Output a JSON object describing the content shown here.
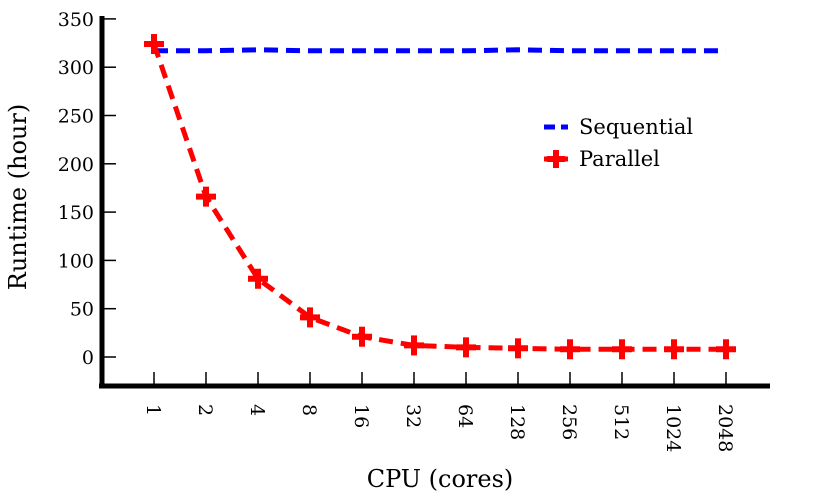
{
  "chart_data": {
    "type": "line",
    "xlabel": "CPU (cores)",
    "ylabel": "Runtime (hour)",
    "categories": [
      "1",
      "2",
      "4",
      "8",
      "16",
      "32",
      "64",
      "128",
      "256",
      "512",
      "1024",
      "2048"
    ],
    "ylim": [
      -30,
      355
    ],
    "yticks": [
      0,
      50,
      100,
      150,
      200,
      250,
      300,
      350
    ],
    "grid": false,
    "legend_position": "right",
    "series": [
      {
        "name": "Sequential",
        "color": "#0000ff",
        "line_style": "dashed",
        "marker": "none",
        "values": [
          317,
          317,
          318,
          317,
          317,
          317,
          317,
          318,
          317,
          317,
          317,
          317
        ]
      },
      {
        "name": "Parallel",
        "color": "#ff0000",
        "line_style": "dashed",
        "marker": "plus",
        "values": [
          324,
          166,
          81,
          41,
          21,
          12,
          10,
          9,
          8,
          8,
          8,
          8
        ]
      }
    ]
  }
}
